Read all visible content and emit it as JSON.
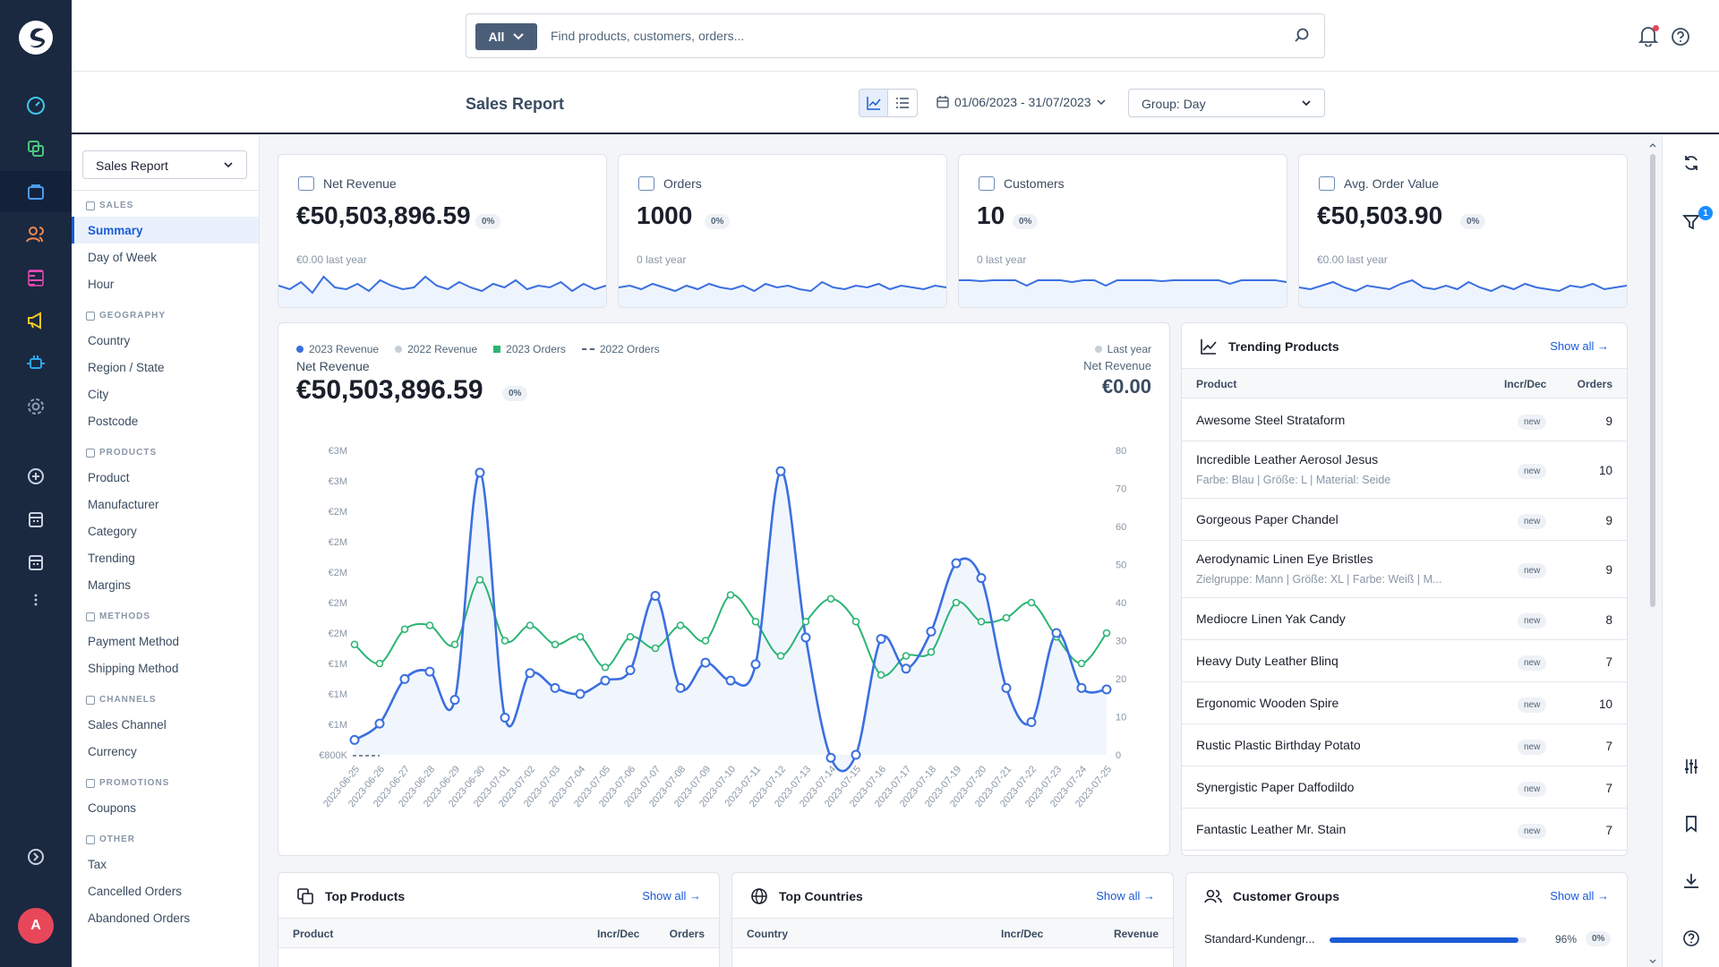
{
  "search": {
    "scope": "All",
    "placeholder": "Find products, customers, orders..."
  },
  "header": {
    "title": "Sales Report",
    "date_range": "01/06/2023 - 31/07/2023",
    "group": "Group: Day"
  },
  "user": {
    "initial": "A"
  },
  "sidebar": {
    "report_select": "Sales Report",
    "sections": [
      {
        "title": "SALES",
        "icon": "bar-chart-icon",
        "items": [
          "Summary",
          "Day of Week",
          "Hour"
        ]
      },
      {
        "title": "GEOGRAPHY",
        "icon": "globe-icon",
        "items": [
          "Country",
          "Region / State",
          "City",
          "Postcode"
        ]
      },
      {
        "title": "PRODUCTS",
        "icon": "box-icon",
        "items": [
          "Product",
          "Manufacturer",
          "Category",
          "Trending",
          "Margins"
        ]
      },
      {
        "title": "METHODS",
        "icon": "card-icon",
        "items": [
          "Payment Method",
          "Shipping Method"
        ]
      },
      {
        "title": "CHANNELS",
        "icon": "channel-icon",
        "items": [
          "Sales Channel",
          "Currency"
        ]
      },
      {
        "title": "PROMOTIONS",
        "icon": "tag-icon",
        "items": [
          "Coupons"
        ]
      },
      {
        "title": "OTHER",
        "icon": "info-icon",
        "items": [
          "Tax",
          "Cancelled Orders",
          "Abandoned Orders"
        ]
      }
    ]
  },
  "kpis": [
    {
      "label": "Net Revenue",
      "value": "€50,503,896.59",
      "change": "0%",
      "last": "€0.00 last year",
      "icon": "money-icon"
    },
    {
      "label": "Orders",
      "value": "1000",
      "change": "0%",
      "last": "0 last year",
      "icon": "bag-icon"
    },
    {
      "label": "Customers",
      "value": "10",
      "change": "0%",
      "last": "0 last year",
      "icon": "user-icon"
    },
    {
      "label": "Avg. Order Value",
      "value": "€50,503.90",
      "change": "0%",
      "last": "€0.00 last year",
      "icon": "trend-icon"
    }
  ],
  "main_chart": {
    "legend": [
      "2023 Revenue",
      "2022 Revenue",
      "2023 Orders",
      "2022 Orders"
    ],
    "label": "Net Revenue",
    "value": "€50,503,896.59",
    "change": "0%",
    "last_year_label": "Last year",
    "last_year_sub": "Net Revenue",
    "last_year_value": "€0.00"
  },
  "chart_data": {
    "type": "line",
    "x": [
      "2023-06-25",
      "2023-06-26",
      "2023-06-27",
      "2023-06-28",
      "2023-06-29",
      "2023-06-30",
      "2023-07-01",
      "2023-07-02",
      "2023-07-03",
      "2023-07-04",
      "2023-07-05",
      "2023-07-06",
      "2023-07-07",
      "2023-07-08",
      "2023-07-09",
      "2023-07-10",
      "2023-07-11",
      "2023-07-12",
      "2023-07-13",
      "2023-07-14",
      "2023-07-15",
      "2023-07-16",
      "2023-07-17",
      "2023-07-18",
      "2023-07-19",
      "2023-07-20",
      "2023-07-21",
      "2023-07-22",
      "2023-07-23",
      "2023-07-24",
      "2023-07-25"
    ],
    "series": [
      {
        "name": "2023 Revenue",
        "axis": "left",
        "values": [
          0.9,
          1.01,
          1.31,
          1.36,
          1.17,
          2.7,
          1.05,
          1.35,
          1.25,
          1.21,
          1.3,
          1.37,
          1.87,
          1.25,
          1.42,
          1.3,
          1.41,
          2.71,
          1.59,
          0.78,
          0.8,
          1.58,
          1.38,
          1.63,
          2.09,
          1.99,
          1.25,
          1.02,
          1.62,
          1.25,
          1.24
        ],
        "color": "#3b6fe0"
      },
      {
        "name": "2023 Orders",
        "axis": "right",
        "values": [
          29,
          24,
          33,
          34,
          29,
          46,
          30,
          34,
          29,
          31,
          23,
          31,
          28,
          34,
          30,
          42,
          35,
          26,
          35,
          41,
          35,
          21,
          26,
          27,
          40,
          35,
          36,
          40,
          31,
          24,
          32
        ],
        "color": "#2bb574"
      }
    ],
    "left_ticks": [
      "€800K",
      "€1M",
      "€1M",
      "€1M",
      "€2M",
      "€2M",
      "€2M",
      "€2M",
      "€2M",
      "€3M",
      "€3M"
    ],
    "right_ticks": [
      0,
      10,
      20,
      30,
      40,
      50,
      60,
      70,
      80
    ],
    "ylim_right": [
      0,
      80
    ]
  },
  "trending": {
    "title": "Trending Products",
    "show_all": "Show all →",
    "cols": [
      "Product",
      "Incr/Dec",
      "Orders"
    ],
    "rows": [
      {
        "name": "Awesome Steel Strataform",
        "sub": "",
        "badge": "new",
        "orders": "9"
      },
      {
        "name": "Incredible Leather Aerosol Jesus",
        "sub": "Farbe: Blau | Größe: L | Material: Seide",
        "badge": "new",
        "orders": "10"
      },
      {
        "name": "Gorgeous Paper Chandel",
        "sub": "",
        "badge": "new",
        "orders": "9"
      },
      {
        "name": "Aerodynamic Linen Eye Bristles",
        "sub": "Zielgruppe: Mann | Größe: XL | Farbe: Weiß | M...",
        "badge": "new",
        "orders": "9"
      },
      {
        "name": "Mediocre Linen Yak Candy",
        "sub": "",
        "badge": "new",
        "orders": "8"
      },
      {
        "name": "Heavy Duty Leather Blinq",
        "sub": "",
        "badge": "new",
        "orders": "7"
      },
      {
        "name": "Ergonomic Wooden Spire",
        "sub": "",
        "badge": "new",
        "orders": "10"
      },
      {
        "name": "Rustic Plastic Birthday Potato",
        "sub": "",
        "badge": "new",
        "orders": "7"
      },
      {
        "name": "Synergistic Paper Daffodildo",
        "sub": "",
        "badge": "new",
        "orders": "7"
      },
      {
        "name": "Fantastic Leather Mr. Stain",
        "sub": "",
        "badge": "new",
        "orders": "7"
      }
    ]
  },
  "top_products": {
    "title": "Top Products",
    "show_all": "Show all →",
    "cols": [
      "Product",
      "Incr/Dec",
      "Orders"
    ]
  },
  "top_countries": {
    "title": "Top Countries",
    "show_all": "Show all →",
    "cols": [
      "Country",
      "Incr/Dec",
      "Revenue"
    ]
  },
  "customer_groups": {
    "title": "Customer Groups",
    "show_all": "Show all →",
    "rows": [
      {
        "name": "Standard-Kundengr...",
        "pct": "96%",
        "change": "0%",
        "fill": 0.96
      }
    ]
  },
  "filter_badge": "1"
}
